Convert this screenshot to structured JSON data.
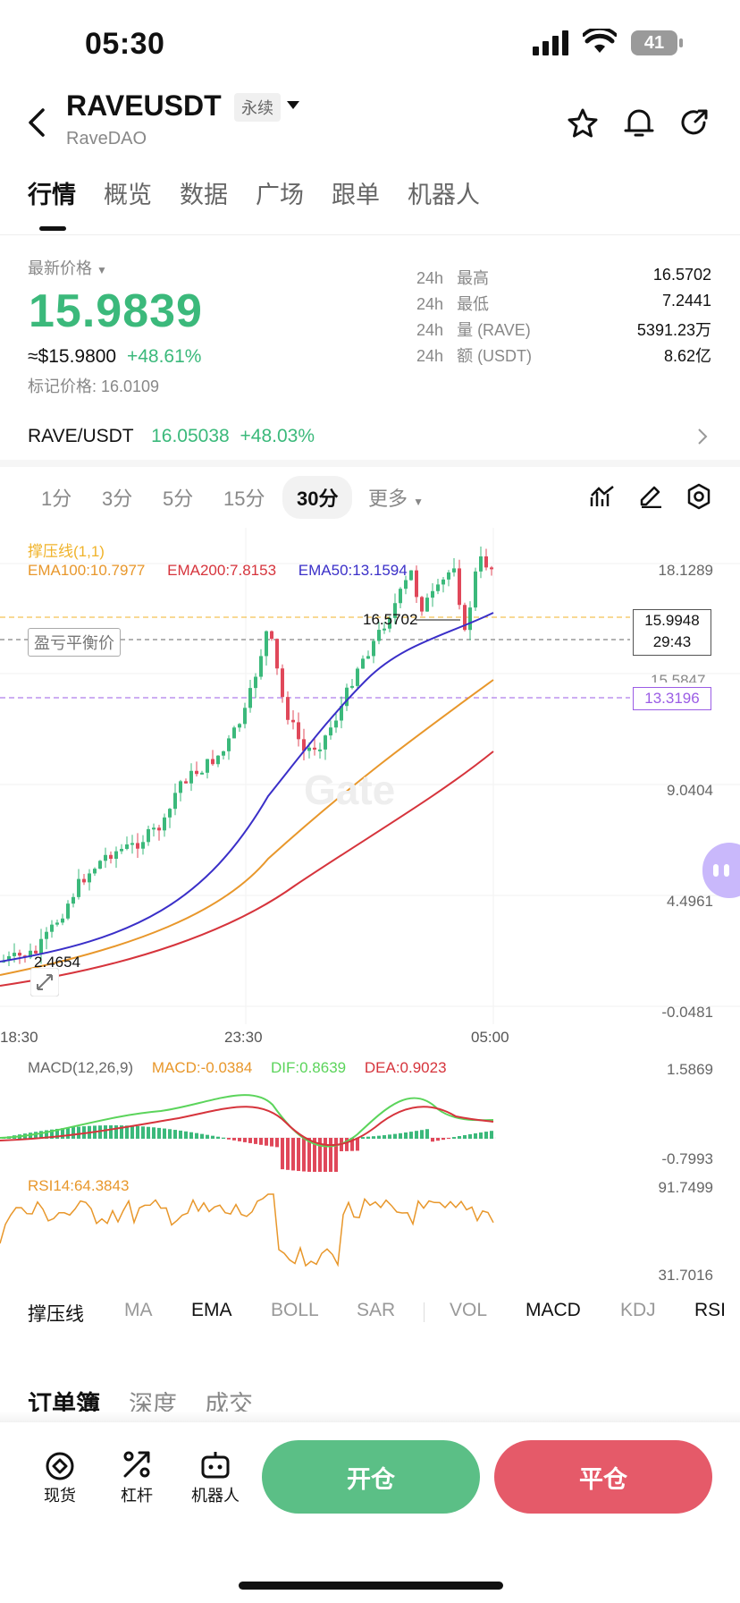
{
  "status": {
    "time": "05:30",
    "battery": "41"
  },
  "header": {
    "symbol": "RAVEUSDT",
    "badge": "永续",
    "subtitle": "RaveDAO"
  },
  "tabs": [
    "行情",
    "概览",
    "数据",
    "广场",
    "跟单",
    "机器人"
  ],
  "price": {
    "label": "最新价格",
    "last": "15.9839",
    "usd": "≈$15.9800",
    "change": "+48.61%",
    "mark": "标记价格: 16.0109"
  },
  "stats": [
    {
      "p": "24h",
      "k": "最高",
      "v": "16.5702"
    },
    {
      "p": "24h",
      "k": "最低",
      "v": "7.2441"
    },
    {
      "p": "24h",
      "k": "量 (RAVE)",
      "v": "5391.23万"
    },
    {
      "p": "24h",
      "k": "额 (USDT)",
      "v": "8.62亿"
    }
  ],
  "spot_pair": {
    "name": "RAVE/USDT",
    "price": "16.05038",
    "change": "+48.03%"
  },
  "timeframes": [
    "1分",
    "3分",
    "5分",
    "15分",
    "30分",
    "更多"
  ],
  "timeframe_active": "30分",
  "chart": {
    "overlay_title": "撑压线(1,1)",
    "ema100": "EMA100:10.7977",
    "ema200": "EMA200:7.8153",
    "ema50": "EMA50:13.1594",
    "breakeven_label": "盈亏平衡价",
    "high_label": "16.5702",
    "low_label": "2.4654",
    "price_tag": "15.9948",
    "countdown": "29:43",
    "line_tag": "13.3196",
    "partial_label": "15.5847",
    "y_ticks": [
      "18.1289",
      "13.5847",
      "9.0404",
      "4.4961",
      "-0.0481"
    ],
    "x_ticks": [
      "18:30",
      "23:30",
      "05:00"
    ],
    "watermark": "Gate",
    "colors": {
      "up": "#3bb97b",
      "down": "#e0485a",
      "ema50": "#3a2fc8",
      "ema100": "#e8972b",
      "ema200": "#d6343c",
      "yellow": "#f0b32a",
      "purple": "#9b5de5"
    }
  },
  "macd": {
    "title": "MACD(12,26,9)",
    "macd": "MACD:-0.0384",
    "dif": "DIF:0.8639",
    "dea": "DEA:0.9023",
    "top": "1.5869",
    "bottom": "-0.7993"
  },
  "rsi": {
    "title": "RSI14:64.3843",
    "top": "91.7499",
    "bottom": "31.7016"
  },
  "indicators": [
    "撑压线",
    "MA",
    "EMA",
    "BOLL",
    "SAR",
    "VOL",
    "MACD",
    "KDJ",
    "RSI"
  ],
  "orderbook_tabs": [
    "订单簿",
    "深度",
    "成交"
  ],
  "bottom_nav": [
    "现货",
    "杠杆",
    "机器人"
  ],
  "actions": {
    "open": "开仓",
    "close": "平仓"
  }
}
